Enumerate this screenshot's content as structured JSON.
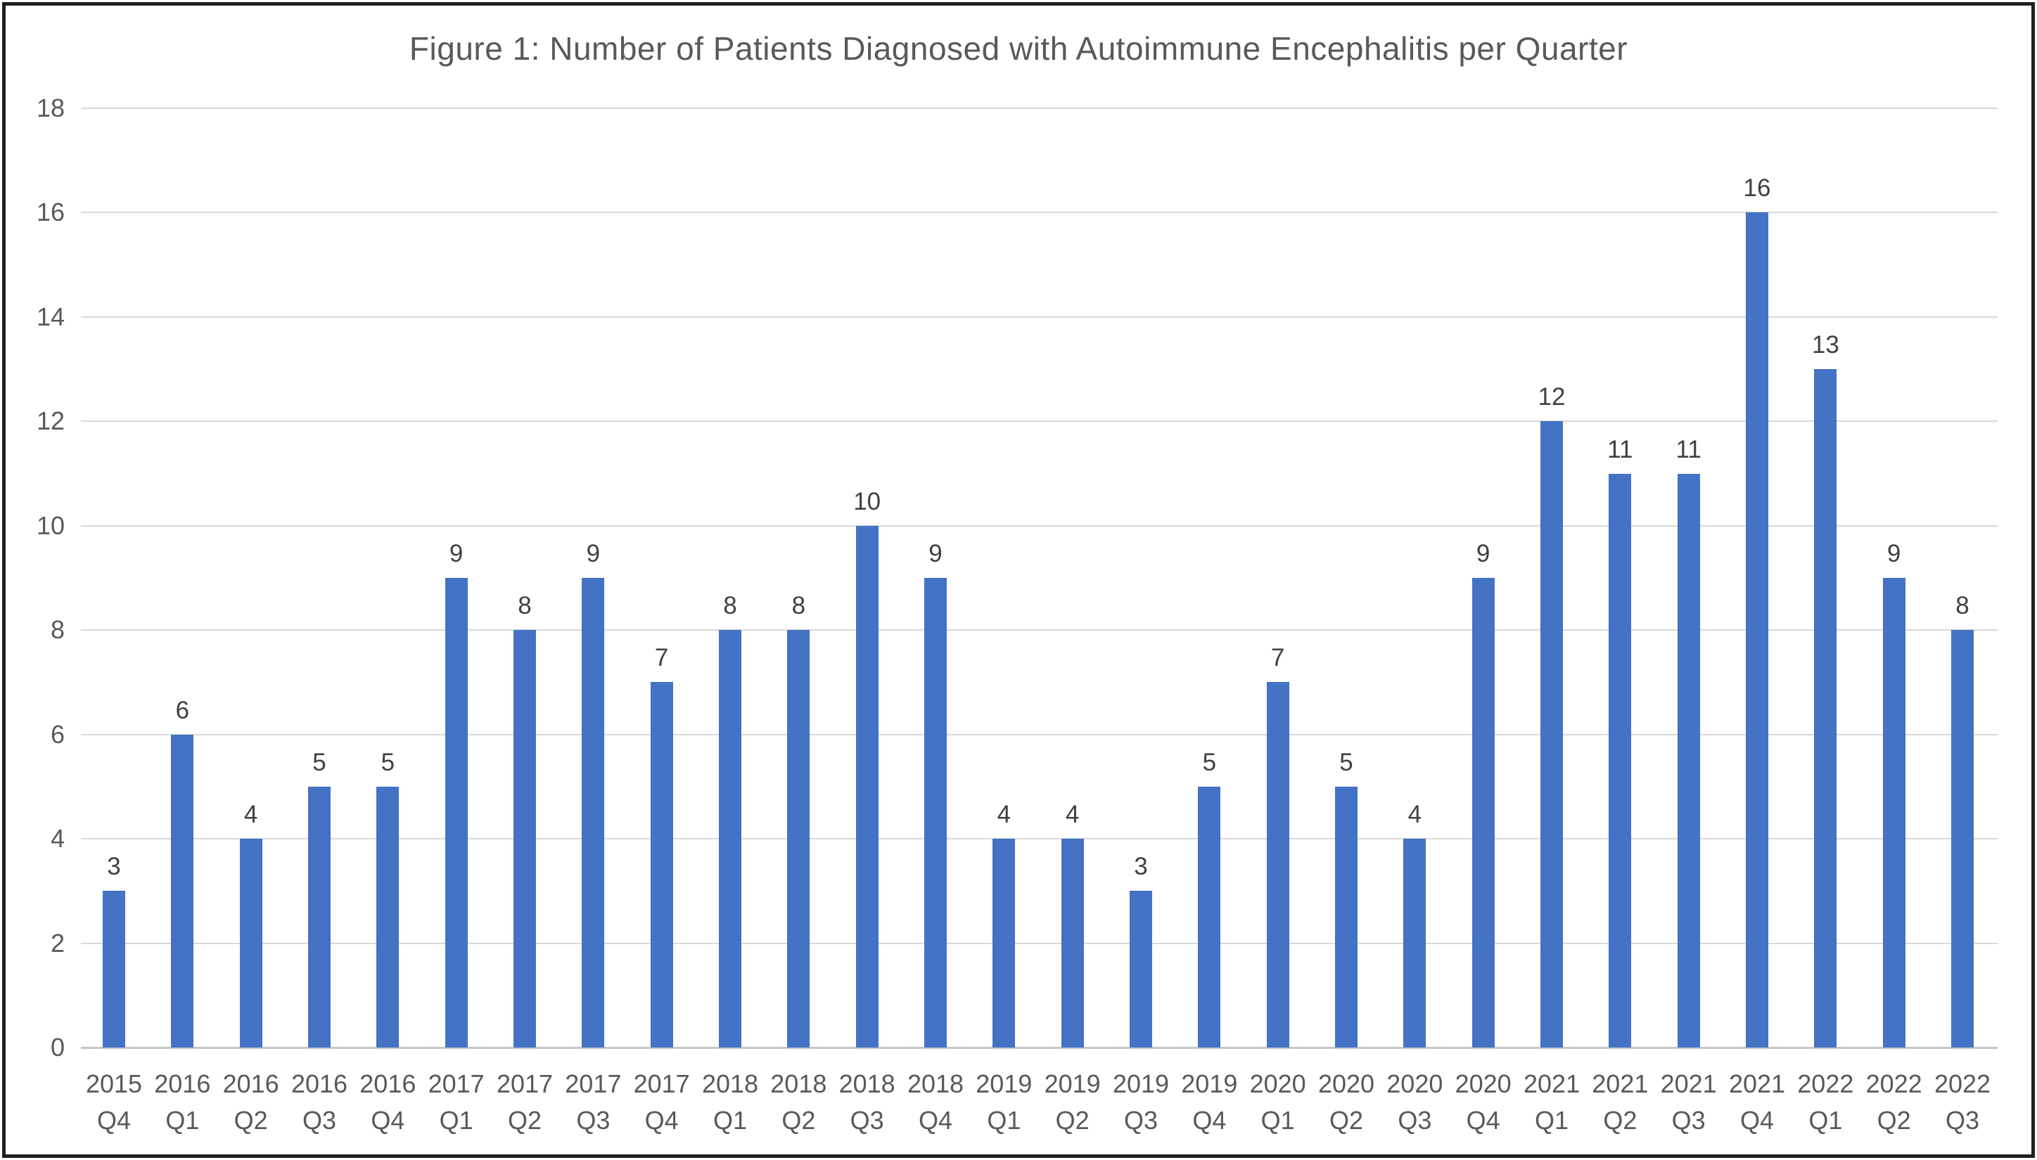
{
  "chart_data": {
    "type": "bar",
    "title": "Figure 1: Number of Patients Diagnosed with Autoimmune Encephalitis per Quarter",
    "categories": [
      "2015 Q4",
      "2016 Q1",
      "2016 Q2",
      "2016 Q3",
      "2016 Q4",
      "2017 Q1",
      "2017 Q2",
      "2017 Q3",
      "2017 Q4",
      "2018 Q1",
      "2018 Q2",
      "2018 Q3",
      "2018 Q4",
      "2019 Q1",
      "2019 Q2",
      "2019 Q3",
      "2019 Q4",
      "2020 Q1",
      "2020 Q2",
      "2020 Q3",
      "2020 Q4",
      "2021 Q1",
      "2021 Q2",
      "2021 Q3",
      "2021 Q4",
      "2022 Q1",
      "2022 Q2",
      "2022 Q3"
    ],
    "values": [
      3,
      6,
      4,
      5,
      5,
      9,
      8,
      9,
      7,
      8,
      8,
      10,
      9,
      4,
      4,
      3,
      5,
      7,
      5,
      4,
      9,
      12,
      11,
      11,
      16,
      13,
      9,
      8
    ],
    "xlabel": "",
    "ylabel": "",
    "ylim": [
      0,
      18
    ],
    "yticks": [
      0,
      2,
      4,
      6,
      8,
      10,
      12,
      14,
      16,
      18
    ],
    "grid": true,
    "legend": false,
    "data_labels": true,
    "colors": {
      "bar": "#4472C4",
      "gridline": "#d9d9d9",
      "axis_line": "#c6c6c6",
      "axis_text": "#595959",
      "value_label_text": "#404040",
      "title_text": "#595959",
      "frame_border": "#1f1f1f",
      "background": "#ffffff"
    }
  }
}
